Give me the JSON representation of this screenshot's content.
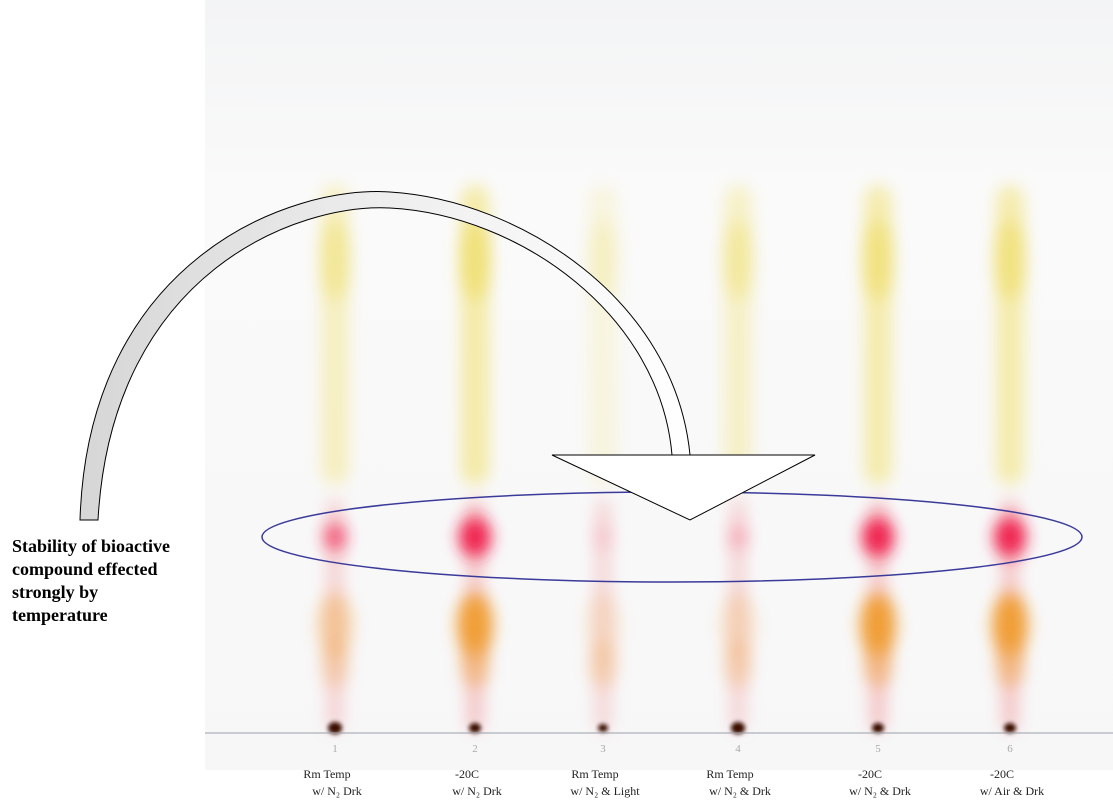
{
  "annotation": {
    "lines": [
      "Stability of bioactive",
      "compound effected",
      "strongly by",
      "temperature"
    ]
  },
  "lanes": [
    {
      "number": "1",
      "label": [
        "Rm Temp",
        "w/ N₂ Drk"
      ]
    },
    {
      "number": "2",
      "label": [
        "-20C",
        "w/ N₂ Drk"
      ]
    },
    {
      "number": "3",
      "label": [
        "Rm Temp",
        "w/ N₂ & Light"
      ]
    },
    {
      "number": "4",
      "label": [
        "Rm Temp",
        "w/ N₂ & Drk"
      ]
    },
    {
      "number": "5",
      "label": [
        "-20C",
        "w/ N₂ & Drk"
      ]
    },
    {
      "number": "6",
      "label": [
        "-20C",
        "w/ Air & Drk"
      ]
    }
  ]
}
